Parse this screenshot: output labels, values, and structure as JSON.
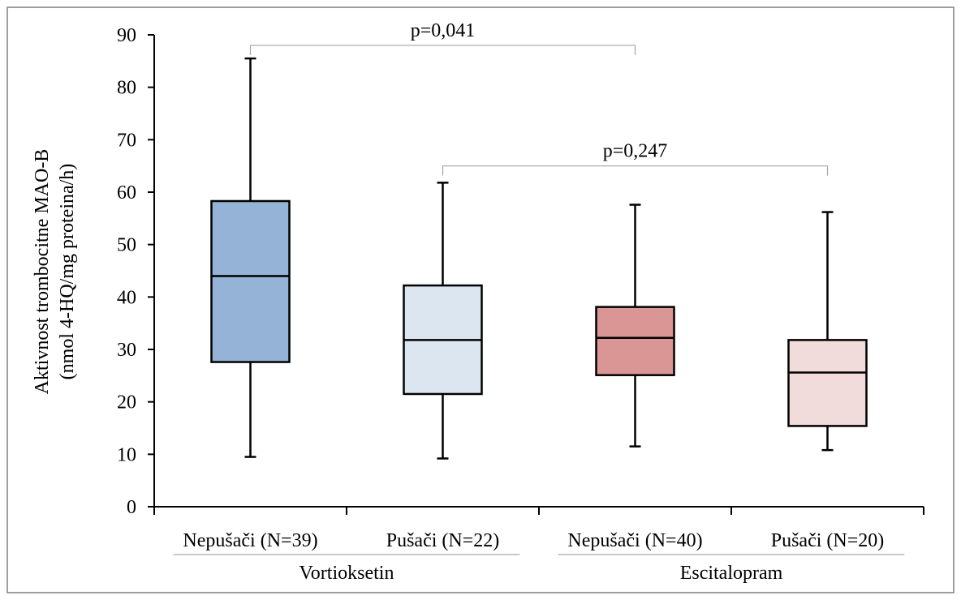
{
  "chart_data": {
    "type": "box",
    "ylabel": "Aktivnost trombocitne MAO-B",
    "ylabel_unit": "(nmol 4-HQ/mg proteina/h)",
    "ylim": [
      0,
      90
    ],
    "yticks": [
      0,
      10,
      20,
      30,
      40,
      50,
      60,
      70,
      80,
      90
    ],
    "categories": [
      "Nepušači (N=39)",
      "Pušači (N=22)",
      "Nepušači (N=40)",
      "Pušači (N=20)"
    ],
    "groups": [
      {
        "label": "Vortioksetin",
        "categories": [
          0,
          1
        ]
      },
      {
        "label": "Escitalopram",
        "categories": [
          2,
          3
        ]
      }
    ],
    "boxes": [
      {
        "min": 9.5,
        "q1": 27.6,
        "median": 44.0,
        "q3": 58.3,
        "max": 85.5,
        "color": "#95b3d7"
      },
      {
        "min": 9.2,
        "q1": 21.5,
        "median": 31.8,
        "q3": 42.2,
        "max": 61.8,
        "color": "#dce6f1"
      },
      {
        "min": 11.5,
        "q1": 25.1,
        "median": 32.2,
        "q3": 38.1,
        "max": 57.6,
        "color": "#da9694"
      },
      {
        "min": 10.8,
        "q1": 15.4,
        "median": 25.6,
        "q3": 31.8,
        "max": 56.2,
        "color": "#f2dcdb"
      }
    ],
    "comparisons": [
      {
        "from": 0,
        "to": 2,
        "label": "p=0,041",
        "level": 88
      },
      {
        "from": 1,
        "to": 3,
        "label": "p=0,247",
        "level": 65
      }
    ]
  }
}
